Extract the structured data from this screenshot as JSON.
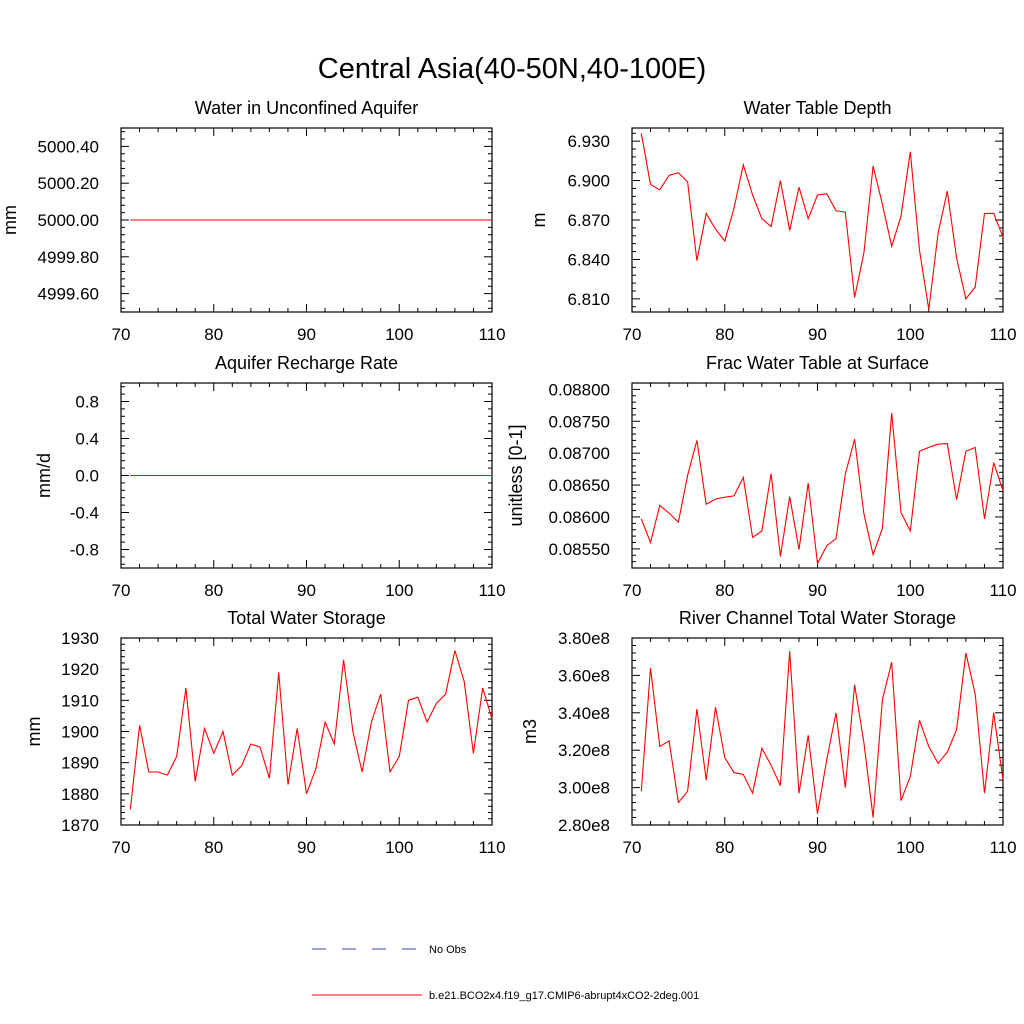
{
  "title": "Central Asia(40-50N,40-100E)",
  "legend": {
    "items": [
      {
        "label": "No Obs",
        "color": "#3b4ba8",
        "dash": true
      },
      {
        "label": "b.e21.BCO2x4.f19_g17.CMIP6-abrupt4xCO2-2deg.001",
        "color": "#ff0000",
        "dash": false
      }
    ]
  },
  "chart_data": [
    {
      "type": "line",
      "title": "Water in Unconfined Aquifer",
      "xlabel": "",
      "ylabel": "mm",
      "xlim": [
        70,
        110
      ],
      "ylim": [
        4999.5,
        5000.5
      ],
      "xticks": [
        70,
        80,
        90,
        100,
        110
      ],
      "xtick_labels": [
        "70",
        "80",
        "90",
        "100",
        "110"
      ],
      "yticks": [
        4999.6,
        4999.8,
        5000.0,
        5000.2,
        5000.4
      ],
      "ytick_labels": [
        "4999.60",
        "4999.80",
        "5000.00",
        "5000.20",
        "5000.40"
      ],
      "x": [
        71,
        110
      ],
      "series": [
        {
          "values": [
            5000.0,
            5000.0
          ],
          "color": "#ff0000"
        }
      ]
    },
    {
      "type": "line",
      "title": "Water Table Depth",
      "xlabel": "",
      "ylabel": "m",
      "xlim": [
        70,
        110
      ],
      "ylim": [
        6.8,
        6.94
      ],
      "xticks": [
        70,
        80,
        90,
        100,
        110
      ],
      "xtick_labels": [
        "70",
        "80",
        "90",
        "100",
        "110"
      ],
      "yticks": [
        6.81,
        6.84,
        6.87,
        6.9,
        6.93
      ],
      "ytick_labels": [
        "6.810",
        "6.840",
        "6.870",
        "6.900",
        "6.930"
      ],
      "x": [
        71,
        72,
        73,
        74,
        75,
        76,
        77,
        78,
        79,
        80,
        81,
        82,
        83,
        84,
        85,
        86,
        87,
        88,
        89,
        90,
        91,
        92,
        93,
        94,
        95,
        96,
        97,
        98,
        99,
        100,
        101,
        102,
        103,
        104,
        105,
        106,
        107,
        108,
        109,
        110
      ],
      "series": [
        {
          "values": [
            6.936,
            6.897,
            6.893,
            6.904,
            6.906,
            6.899,
            6.839,
            6.875,
            6.863,
            6.854,
            6.879,
            6.912,
            6.889,
            6.871,
            6.865,
            6.9,
            6.862,
            6.895,
            6.871,
            6.889,
            6.89,
            6.877,
            6.876,
            6.811,
            6.845,
            6.911,
            6.882,
            6.85,
            6.873,
            6.922,
            6.847,
            6.802,
            6.86,
            6.892,
            6.841,
            6.81,
            6.819,
            6.875,
            6.875,
            6.857
          ],
          "color": "#ff0000"
        }
      ]
    },
    {
      "type": "line",
      "title": "Aquifer Recharge Rate",
      "xlabel": "",
      "ylabel": "mm/d",
      "xlim": [
        70,
        110
      ],
      "ylim": [
        -1.0,
        1.0
      ],
      "xticks": [
        70,
        80,
        90,
        100,
        110
      ],
      "xtick_labels": [
        "70",
        "80",
        "90",
        "100",
        "110"
      ],
      "yticks": [
        -0.8,
        -0.4,
        0.0,
        0.4,
        0.8
      ],
      "ytick_labels": [
        "-0.8",
        "-0.4",
        "0.0",
        "0.4",
        "0.8"
      ],
      "x": [
        71,
        110
      ],
      "series": [
        {
          "values": [
            0.0,
            0.0
          ],
          "color": "#ff0000"
        }
      ]
    },
    {
      "type": "line",
      "title": "Frac Water Table at Surface",
      "xlabel": "",
      "ylabel": "unitless [0-1]",
      "xlim": [
        70,
        110
      ],
      "ylim": [
        0.0852,
        0.0881
      ],
      "xticks": [
        70,
        80,
        90,
        100,
        110
      ],
      "xtick_labels": [
        "70",
        "80",
        "90",
        "100",
        "110"
      ],
      "yticks": [
        0.0855,
        0.086,
        0.0865,
        0.087,
        0.0875,
        0.088
      ],
      "ytick_labels": [
        "0.08550",
        "0.08600",
        "0.08650",
        "0.08700",
        "0.08750",
        "0.08800"
      ],
      "x": [
        71,
        72,
        73,
        74,
        75,
        76,
        77,
        78,
        79,
        80,
        81,
        82,
        83,
        84,
        85,
        86,
        87,
        88,
        89,
        90,
        91,
        92,
        93,
        94,
        95,
        96,
        97,
        98,
        99,
        100,
        101,
        102,
        103,
        104,
        105,
        106,
        107,
        108,
        109,
        110
      ],
      "series": [
        {
          "values": [
            0.08597,
            0.0856,
            0.08618,
            0.08606,
            0.08592,
            0.08665,
            0.0872,
            0.0862,
            0.08628,
            0.08631,
            0.08633,
            0.08662,
            0.08568,
            0.08578,
            0.08668,
            0.08538,
            0.08632,
            0.08549,
            0.08653,
            0.08527,
            0.08555,
            0.08566,
            0.08667,
            0.08722,
            0.08605,
            0.08541,
            0.08582,
            0.08763,
            0.08607,
            0.08578,
            0.08703,
            0.08709,
            0.08714,
            0.08715,
            0.08627,
            0.08703,
            0.08709,
            0.08597,
            0.08685,
            0.08641
          ],
          "color": "#ff0000"
        }
      ]
    },
    {
      "type": "line",
      "title": "Total Water Storage",
      "xlabel": "",
      "ylabel": "mm",
      "xlim": [
        70,
        110
      ],
      "ylim": [
        1870,
        1930
      ],
      "xticks": [
        70,
        80,
        90,
        100,
        110
      ],
      "xtick_labels": [
        "70",
        "80",
        "90",
        "100",
        "110"
      ],
      "yticks": [
        1870,
        1880,
        1890,
        1900,
        1910,
        1920,
        1930
      ],
      "ytick_labels": [
        "1870",
        "1880",
        "1890",
        "1900",
        "1910",
        "1920",
        "1930"
      ],
      "x": [
        71,
        72,
        73,
        74,
        75,
        76,
        77,
        78,
        79,
        80,
        81,
        82,
        83,
        84,
        85,
        86,
        87,
        88,
        89,
        90,
        91,
        92,
        93,
        94,
        95,
        96,
        97,
        98,
        99,
        100,
        101,
        102,
        103,
        104,
        105,
        106,
        107,
        108,
        109,
        110
      ],
      "series": [
        {
          "values": [
            1875,
            1902,
            1887,
            1887,
            1886,
            1892,
            1914,
            1884,
            1901,
            1893,
            1900,
            1886,
            1889,
            1896,
            1895,
            1885,
            1919,
            1883,
            1901,
            1880,
            1888,
            1903,
            1896,
            1923,
            1900,
            1887,
            1903,
            1912,
            1887,
            1892,
            1910,
            1911,
            1903,
            1909,
            1912,
            1926,
            1916,
            1893,
            1914,
            1904
          ],
          "color": "#ff0000"
        }
      ]
    },
    {
      "type": "line",
      "title": "River Channel Total Water Storage",
      "xlabel": "",
      "ylabel": "m3",
      "xlim": [
        70,
        110
      ],
      "ylim": [
        280000000.0,
        380000000.0
      ],
      "xticks": [
        70,
        80,
        90,
        100,
        110
      ],
      "xtick_labels": [
        "70",
        "80",
        "90",
        "100",
        "110"
      ],
      "yticks": [
        280000000.0,
        300000000.0,
        320000000.0,
        340000000.0,
        360000000.0,
        380000000.0
      ],
      "ytick_labels": [
        "2.80e8",
        "3.00e8",
        "3.20e8",
        "3.40e8",
        "3.60e8",
        "3.80e8"
      ],
      "x": [
        71,
        72,
        73,
        74,
        75,
        76,
        77,
        78,
        79,
        80,
        81,
        82,
        83,
        84,
        85,
        86,
        87,
        88,
        89,
        90,
        91,
        92,
        93,
        94,
        95,
        96,
        97,
        98,
        99,
        100,
        101,
        102,
        103,
        104,
        105,
        106,
        107,
        108,
        109,
        110
      ],
      "series": [
        {
          "values": [
            298000000.0,
            364000000.0,
            322000000.0,
            325000000.0,
            292000000.0,
            298000000.0,
            342000000.0,
            304000000.0,
            343000000.0,
            316000000.0,
            308000000.0,
            307000000.0,
            297000000.0,
            321000000.0,
            312000000.0,
            301000000.0,
            373000000.0,
            297000000.0,
            328000000.0,
            286000000.0,
            315000000.0,
            340000000.0,
            300000000.0,
            355000000.0,
            324000000.0,
            284000000.0,
            347000000.0,
            367000000.0,
            293000000.0,
            306000000.0,
            336000000.0,
            322000000.0,
            313000000.0,
            319000000.0,
            331000000.0,
            372000000.0,
            350000000.0,
            297000000.0,
            340000000.0,
            304000000.0
          ],
          "color": "#ff0000"
        }
      ]
    }
  ]
}
